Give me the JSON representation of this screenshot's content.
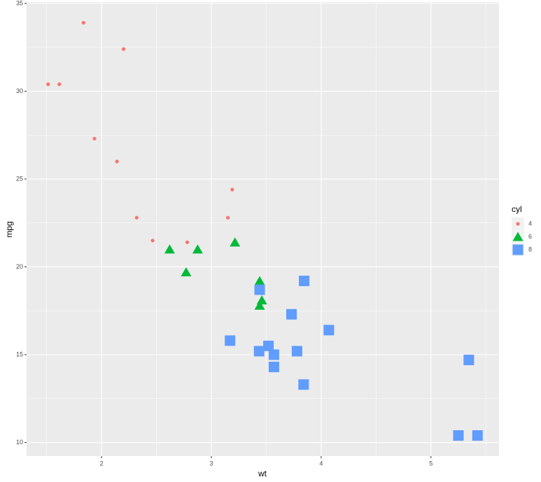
{
  "chart_data": {
    "type": "scatter",
    "x_label": "wt",
    "y_label": "mpg",
    "legend_title": "cyl",
    "xlim": [
      1.317,
      5.62
    ],
    "ylim": [
      9.225,
      35.075
    ],
    "xticks": [
      2,
      3,
      4,
      5
    ],
    "yticks": [
      10,
      15,
      20,
      25,
      30,
      35
    ],
    "grid": true,
    "legend_position": "right",
    "series": [
      {
        "name": "4",
        "color": "#F8766D",
        "shape": "circle",
        "x": [
          2.32,
          3.19,
          3.15,
          2.2,
          1.615,
          1.835,
          2.465,
          1.935,
          2.14,
          1.513,
          2.78
        ],
        "y": [
          22.8,
          24.4,
          22.8,
          32.4,
          30.4,
          33.9,
          21.5,
          27.3,
          26.0,
          30.4,
          21.4
        ]
      },
      {
        "name": "6",
        "color": "#00BA38",
        "shape": "triangle",
        "x": [
          2.62,
          2.875,
          3.215,
          3.46,
          3.44,
          3.44,
          2.77
        ],
        "y": [
          21.0,
          21.0,
          21.4,
          18.1,
          19.2,
          17.8,
          19.7
        ]
      },
      {
        "name": "8",
        "color": "#619CFF",
        "shape": "square",
        "x": [
          3.44,
          3.57,
          4.07,
          3.73,
          3.78,
          5.25,
          5.424,
          5.345,
          3.52,
          3.435,
          3.84,
          3.845,
          3.17,
          3.57
        ],
        "y": [
          18.7,
          14.3,
          16.4,
          17.3,
          15.2,
          10.4,
          10.4,
          14.7,
          15.5,
          15.2,
          13.3,
          19.2,
          15.8,
          15.0
        ]
      }
    ]
  }
}
